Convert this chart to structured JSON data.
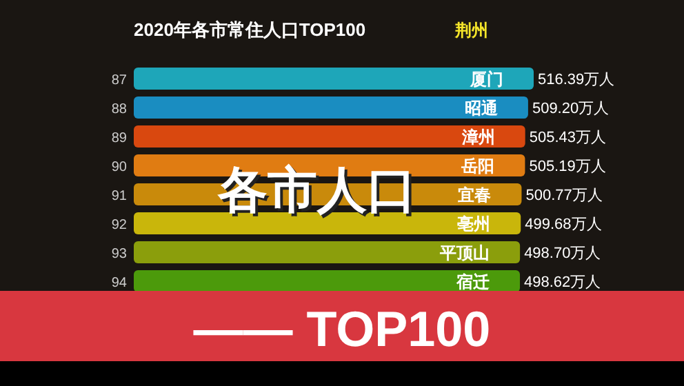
{
  "chart_data": {
    "type": "bar",
    "orientation": "horizontal",
    "title": "2020年各市常住人口TOP100",
    "subtitle": "荆州",
    "categories": [
      "厦门",
      "昭通",
      "漳州",
      "岳阳",
      "宜春",
      "亳州",
      "平顶山",
      "宿迁"
    ],
    "values": [
      516.39,
      509.2,
      505.43,
      505.19,
      500.77,
      499.68,
      498.7,
      498.62
    ],
    "value_labels": [
      "516.39万人",
      "509.20万人",
      "505.43万人",
      "505.19万人",
      "500.77万人",
      "499.68万人",
      "498.70万人",
      "498.62万人"
    ],
    "colors": [
      "#1ea6b9",
      "#1a8dc1",
      "#d9480f",
      "#e07c12",
      "#c98a0b",
      "#c9b60b",
      "#8b9e0c",
      "#4c9a0b"
    ],
    "annotations": [
      "87",
      "88",
      "89",
      "90",
      "91",
      "92",
      "93",
      "94",
      "各市人口",
      "—— TOP100"
    ]
  }
}
